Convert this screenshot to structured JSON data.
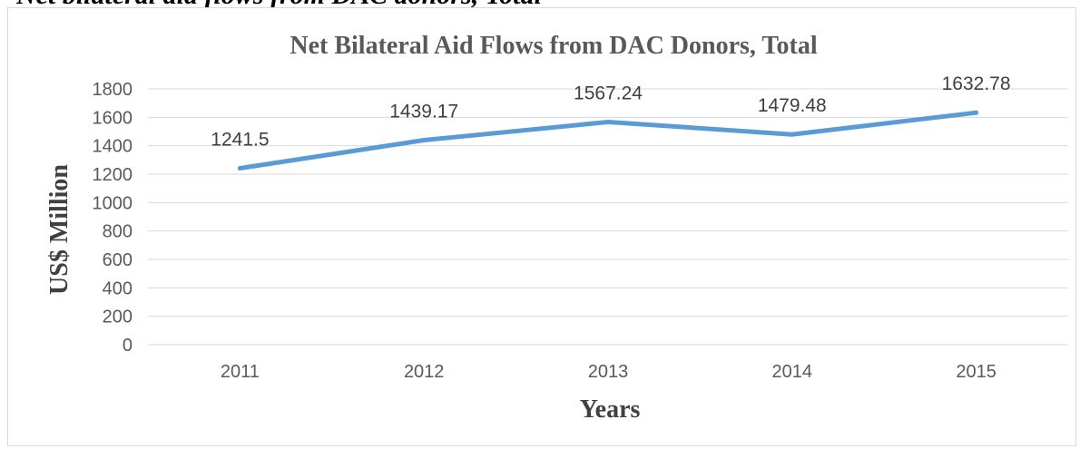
{
  "caption_fragment": "Net bilateral aid flows from DAC donors, Total",
  "chart_data": {
    "type": "line",
    "title": "Net Bilateral Aid Flows from DAC Donors, Total",
    "xlabel": "Years",
    "ylabel": "US$ Million",
    "categories": [
      "2011",
      "2012",
      "2013",
      "2014",
      "2015"
    ],
    "series": [
      {
        "values": [
          1241.5,
          1439.17,
          1567.24,
          1479.48,
          1632.78
        ],
        "color": "#5b9bd5"
      }
    ],
    "data_labels": [
      "1241.5",
      "1439.17",
      "1567.24",
      "1479.48",
      "1632.78"
    ],
    "ylim": [
      0,
      1800
    ],
    "yticks": [
      "0",
      "200",
      "400",
      "600",
      "800",
      "1000",
      "1200",
      "1400",
      "1600",
      "1800"
    ],
    "grid": true,
    "legend": "none"
  }
}
